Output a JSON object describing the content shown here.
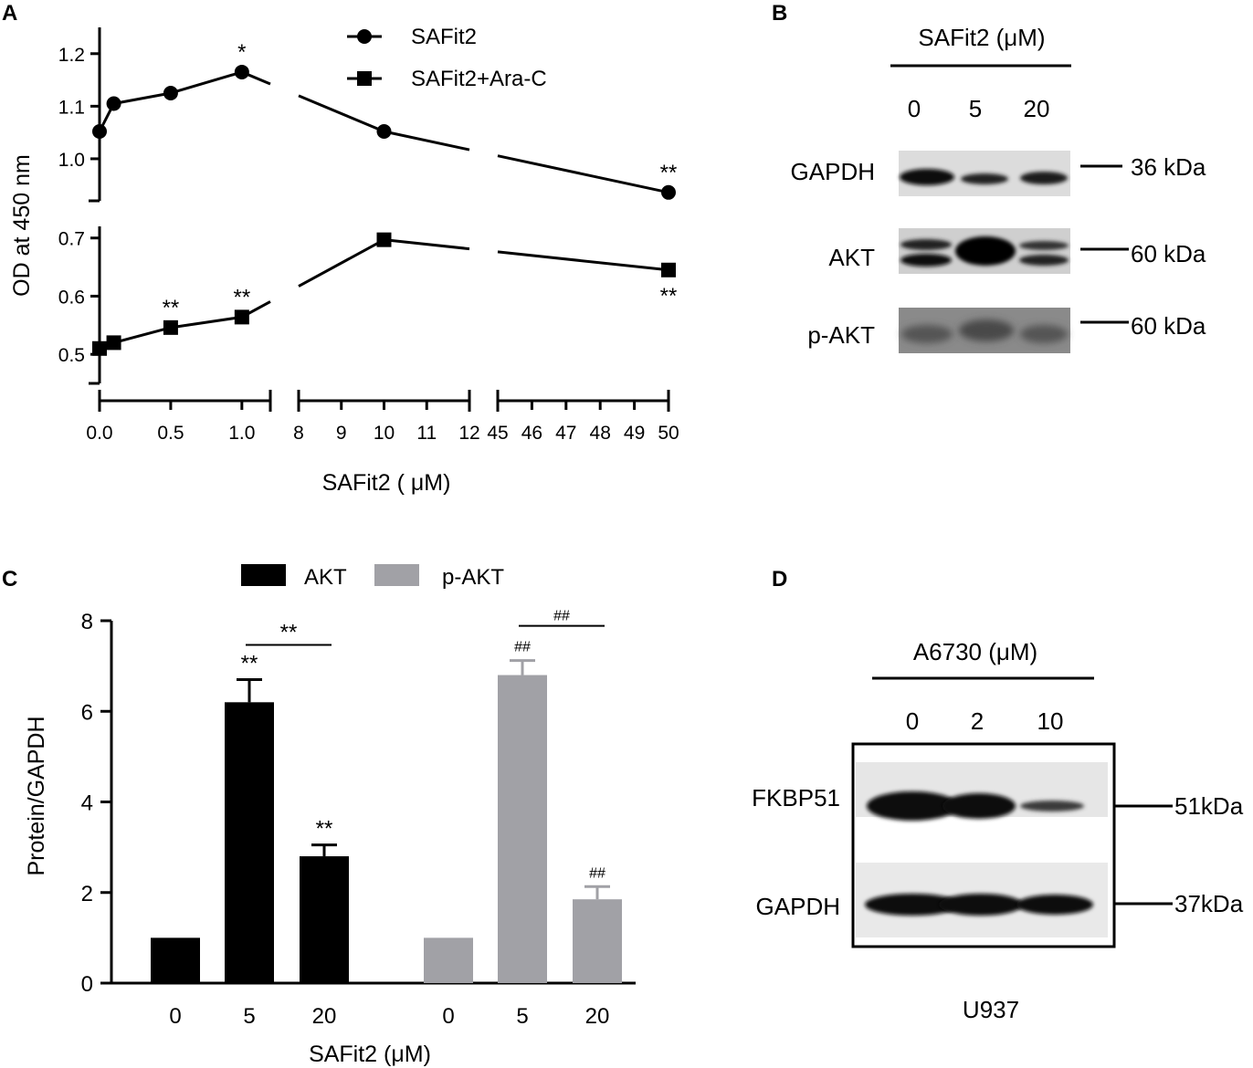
{
  "panels": {
    "a": "A",
    "b": "B",
    "c": "C",
    "d": "D"
  },
  "chart_data": [
    {
      "panel": "A",
      "type": "line",
      "xlabel": "SAFit2 ( μM)",
      "ylabel": "OD at 450 nm",
      "x_segments": [
        {
          "range": [
            0.0,
            1.2
          ],
          "ticks": [
            "0.0",
            "0.5",
            "1.0"
          ],
          "tick_values": [
            0.0,
            0.5,
            1.0
          ]
        },
        {
          "range": [
            8,
            12
          ],
          "ticks": [
            "8",
            "9",
            "10",
            "11",
            "12"
          ],
          "tick_values": [
            8,
            9,
            10,
            11,
            12
          ]
        },
        {
          "range": [
            45,
            50
          ],
          "ticks": [
            "45",
            "46",
            "47",
            "48",
            "49",
            "50"
          ],
          "tick_values": [
            45,
            46,
            47,
            48,
            49,
            50
          ]
        }
      ],
      "y_segments": [
        {
          "range": [
            0.45,
            0.72
          ],
          "ticks": [
            "0.5",
            "0.6",
            "0.7"
          ],
          "tick_values": [
            0.5,
            0.6,
            0.7
          ]
        },
        {
          "range": [
            0.92,
            1.25
          ],
          "ticks": [
            "1.0",
            "1.1",
            "1.2"
          ],
          "tick_values": [
            1.0,
            1.1,
            1.2
          ]
        }
      ],
      "series": [
        {
          "name": "SAFit2",
          "marker": "circle",
          "x": [
            0,
            0.1,
            0.5,
            1.0,
            10,
            50
          ],
          "y": [
            1.052,
            1.105,
            1.125,
            1.165,
            1.052,
            0.936
          ],
          "annotations": [
            {
              "x": 1.0,
              "text": "*",
              "pos": "above"
            },
            {
              "x": 50,
              "text": "**",
              "pos": "above"
            }
          ]
        },
        {
          "name": "SAFit2+Ara-C",
          "marker": "square",
          "x": [
            0,
            0.1,
            0.5,
            1.0,
            10,
            50
          ],
          "y": [
            0.51,
            0.52,
            0.546,
            0.564,
            0.697,
            0.645
          ],
          "annotations": [
            {
              "x": 0.5,
              "text": "**",
              "pos": "above"
            },
            {
              "x": 1.0,
              "text": "**",
              "pos": "above"
            },
            {
              "x": 50,
              "text": "**",
              "pos": "below"
            }
          ]
        }
      ]
    },
    {
      "panel": "C",
      "type": "bar",
      "xlabel": "SAFit2 (μM)",
      "ylabel": "Protein/GAPDH",
      "ylim": [
        0,
        8
      ],
      "yticks": [
        "0",
        "2",
        "4",
        "6",
        "8"
      ],
      "categories": [
        "0",
        "5",
        "20"
      ],
      "series": [
        {
          "name": "AKT",
          "color": "#000000",
          "values": [
            1.0,
            6.2,
            2.8
          ],
          "errors": [
            0,
            0.5,
            0.25
          ],
          "labels": [
            "",
            "**",
            "**"
          ]
        },
        {
          "name": "p-AKT",
          "color": "#a1a1a6",
          "values": [
            1.0,
            6.8,
            1.85
          ],
          "errors": [
            0,
            0.32,
            0.28
          ],
          "labels": [
            "",
            "##",
            "##"
          ]
        }
      ],
      "brackets": [
        {
          "series": "AKT",
          "from": "5",
          "to": "20",
          "text": "**"
        },
        {
          "series": "p-AKT",
          "from": "5",
          "to": "20",
          "text": "##"
        }
      ]
    }
  ],
  "blot_b": {
    "header": "SAFit2 (μM)",
    "lanes": [
      "0",
      "5",
      "20"
    ],
    "rows": [
      {
        "label": "GAPDH",
        "size": "36 kDa"
      },
      {
        "label": "AKT",
        "size": "60 kDa"
      },
      {
        "label": "p-AKT",
        "size": "60 kDa"
      }
    ]
  },
  "blot_d": {
    "header": "A6730 (μM)",
    "lanes": [
      "0",
      "2",
      "10"
    ],
    "rows": [
      {
        "label": "FKBP51",
        "size": "51kDa"
      },
      {
        "label": "GAPDH",
        "size": "37kDa"
      }
    ],
    "cell_line": "U937"
  }
}
